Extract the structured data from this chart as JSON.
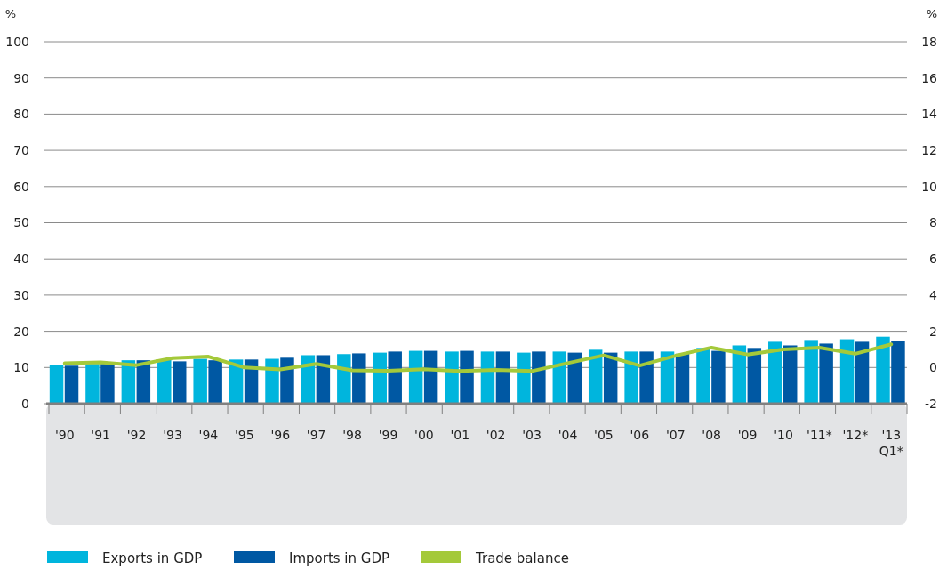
{
  "chart_data": {
    "type": "bar",
    "categories": [
      "'90",
      "'91",
      "'92",
      "'93",
      "'94",
      "'95",
      "'96",
      "'97",
      "'98",
      "'99",
      "'00",
      "'01",
      "'02",
      "'03",
      "'04",
      "'05",
      "'06",
      "'07",
      "'08",
      "'09",
      "'10",
      "'11*",
      "'12*",
      "'13 Q1*"
    ],
    "series": [
      {
        "name": "Exports in GDP",
        "color": "#00b5dd",
        "values": [
          10.7,
          11.0,
          12.0,
          12.2,
          12.4,
          12.2,
          12.4,
          13.4,
          13.7,
          14.1,
          14.6,
          14.4,
          14.4,
          14.1,
          14.4,
          14.9,
          14.4,
          14.4,
          15.4,
          16.1,
          17.1,
          17.6,
          17.8,
          18.5
        ]
      },
      {
        "name": "Imports in GDP",
        "color": "#0058a3",
        "values": [
          10.5,
          11.0,
          12.0,
          11.7,
          12.0,
          12.2,
          12.7,
          13.4,
          13.9,
          14.4,
          14.6,
          14.6,
          14.4,
          14.4,
          14.1,
          14.1,
          14.4,
          13.8,
          14.6,
          15.4,
          16.1,
          16.6,
          17.1,
          17.3
        ]
      },
      {
        "name": "Trade balance",
        "type": "line",
        "axis": "y2",
        "color": "#a4c93a",
        "values": [
          0.23,
          0.28,
          0.13,
          0.52,
          0.6,
          0.0,
          -0.11,
          0.2,
          -0.16,
          -0.18,
          -0.1,
          -0.2,
          -0.13,
          -0.2,
          0.24,
          0.67,
          0.11,
          0.65,
          1.1,
          0.72,
          1.0,
          1.1,
          0.76,
          1.28
        ]
      }
    ],
    "ylabel": "%",
    "y2label": "%",
    "ylim": [
      0,
      100
    ],
    "yticks": [
      0,
      10,
      20,
      30,
      40,
      50,
      60,
      70,
      80,
      90,
      100
    ],
    "y2lim": [
      -2,
      18
    ],
    "y2ticks": [
      -2,
      0,
      2,
      4,
      6,
      8,
      10,
      12,
      14,
      16,
      18
    ],
    "grid": "y",
    "legend": "bottom"
  }
}
